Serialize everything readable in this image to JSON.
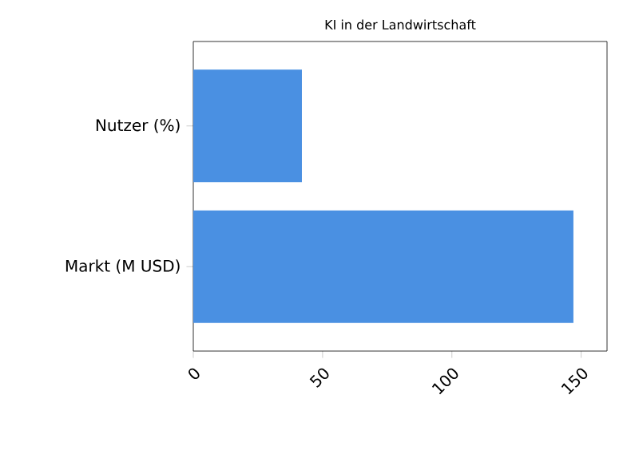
{
  "chart_data": {
    "type": "bar",
    "orientation": "horizontal",
    "title": "KI in der Landwirtschaft",
    "categories": [
      "Nutzer (%)",
      "Markt (M USD)"
    ],
    "values": [
      42,
      147
    ],
    "color": "#4a90e2",
    "xlim": [
      0,
      160
    ],
    "xticks": [
      0,
      50,
      100,
      150
    ]
  }
}
